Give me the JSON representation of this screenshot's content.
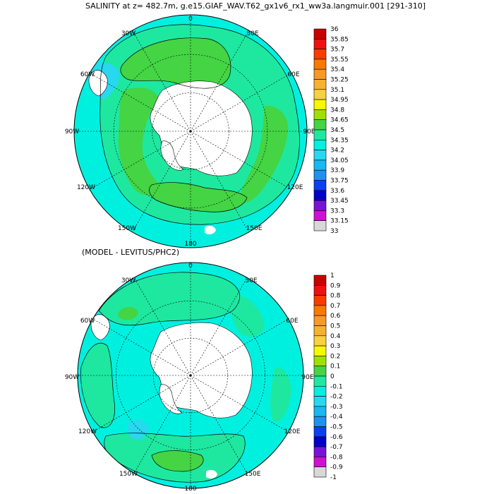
{
  "top_panel": {
    "title": "SALINITY at z= 482.7m, g.e15.GIAF_WAV.T62_gx1v6_rx1_ww3a.langmuir.001 [291-310]",
    "lon_labels": [
      "0",
      "30E",
      "60E",
      "90E",
      "120E",
      "150E",
      "180",
      "150W",
      "120W",
      "90W",
      "60W",
      "30W"
    ],
    "colorbar": {
      "labels": [
        "36",
        "35.85",
        "35.7",
        "35.55",
        "35.4",
        "35.25",
        "35.1",
        "34.95",
        "34.8",
        "34.65",
        "34.5",
        "34.35",
        "34.2",
        "34.05",
        "33.9",
        "33.75",
        "33.6",
        "33.45",
        "33.3",
        "33.15",
        "33"
      ],
      "colors": [
        "#c80000",
        "#f01010",
        "#f83c00",
        "#f87800",
        "#f89828",
        "#f8b030",
        "#f8d040",
        "#f8f800",
        "#a0e000",
        "#44d444",
        "#1ee8a0",
        "#00f0e0",
        "#28d8f0",
        "#18b8f0",
        "#1e90f0",
        "#0a40f0",
        "#0000c8",
        "#7814d8",
        "#d010d0",
        "#d8d8d8"
      ]
    },
    "fill_colors": {
      "land": "#ffffff",
      "ocean_main": "#1ee8a0",
      "ocean_outer": "#00f0e0",
      "ocean_fresh": "#28d8f0",
      "salty_band": "#44d444",
      "max_spot": "#f8f800"
    }
  },
  "bottom_panel": {
    "title": "(MODEL - LEVITUS/PHC2)",
    "lon_labels": [
      "0",
      "30E",
      "60E",
      "90E",
      "120E",
      "150E",
      "180",
      "150W",
      "120W",
      "90W",
      "60W",
      "30W"
    ],
    "colorbar": {
      "labels": [
        "1",
        "0.9",
        "0.8",
        "0.7",
        "0.6",
        "0.5",
        "0.4",
        "0.3",
        "0.2",
        "0.1",
        "0",
        "-0.1",
        "-0.2",
        "-0.3",
        "-0.4",
        "-0.5",
        "-0.6",
        "-0.7",
        "-0.8",
        "-0.9",
        "-1"
      ],
      "colors": [
        "#c80000",
        "#f01010",
        "#f83c00",
        "#f87800",
        "#f89828",
        "#f8b030",
        "#f8d040",
        "#f8f800",
        "#a0e000",
        "#44d444",
        "#1ee8a0",
        "#00f0e0",
        "#28d8f0",
        "#18b8f0",
        "#1e90f0",
        "#0a40f0",
        "#0000c8",
        "#7814d8",
        "#d010d0",
        "#d8d8d8"
      ]
    },
    "fill_colors": {
      "land": "#ffffff",
      "ocean_main": "#00f0e0",
      "positive_band": "#1ee8a0",
      "pos_patch": "#44d444",
      "neg_patch": "#28d8f0"
    }
  }
}
